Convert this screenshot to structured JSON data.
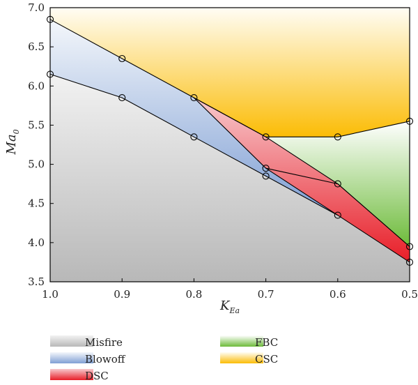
{
  "chart_data": {
    "type": "area",
    "title": "",
    "xlabel": {
      "main": "K",
      "sub": "Ea"
    },
    "ylabel": {
      "main": "Ma",
      "sub": "0"
    },
    "xlim": [
      1.0,
      0.5
    ],
    "ylim": [
      3.5,
      7.0
    ],
    "x_reversed": true,
    "x_ticks": [
      "1.0",
      "0.9",
      "0.8",
      "0.7",
      "0.6",
      "0.5"
    ],
    "x_tick_values": [
      1.0,
      0.9,
      0.8,
      0.7,
      0.6,
      0.5
    ],
    "y_ticks": [
      "3.5",
      "4.0",
      "4.5",
      "5.0",
      "5.5",
      "6.0",
      "6.5",
      "7.0"
    ],
    "y_tick_values": [
      3.5,
      4.0,
      4.5,
      5.0,
      5.5,
      6.0,
      6.5,
      7.0
    ],
    "grid": false,
    "legend_position": "bottom",
    "lines": [
      {
        "points": [
          [
            1.0,
            6.15
          ],
          [
            0.9,
            5.85
          ],
          [
            0.8,
            5.35
          ],
          [
            0.7,
            4.85
          ],
          [
            0.6,
            4.35
          ],
          [
            0.5,
            3.75
          ]
        ]
      },
      {
        "points": [
          [
            1.0,
            6.85
          ],
          [
            0.9,
            6.35
          ],
          [
            0.8,
            5.85
          ],
          [
            0.7,
            4.95
          ],
          [
            0.6,
            4.75
          ],
          [
            0.5,
            3.95
          ]
        ]
      },
      {
        "points": [
          [
            0.8,
            5.85
          ],
          [
            0.7,
            5.35
          ],
          [
            0.6,
            5.35
          ],
          [
            0.5,
            5.55
          ]
        ]
      },
      {
        "points": [
          [
            0.8,
            5.85
          ],
          [
            0.7,
            5.35
          ],
          [
            0.6,
            4.75
          ],
          [
            0.5,
            3.95
          ]
        ]
      },
      {
        "points": [
          [
            0.7,
            4.95
          ],
          [
            0.6,
            4.35
          ]
        ]
      }
    ],
    "markers": [
      [
        1.0,
        6.85
      ],
      [
        1.0,
        6.15
      ],
      [
        0.9,
        6.35
      ],
      [
        0.9,
        5.85
      ],
      [
        0.8,
        5.85
      ],
      [
        0.8,
        5.35
      ],
      [
        0.7,
        5.35
      ],
      [
        0.7,
        4.95
      ],
      [
        0.7,
        4.85
      ],
      [
        0.6,
        5.35
      ],
      [
        0.6,
        4.75
      ],
      [
        0.6,
        4.35
      ],
      [
        0.5,
        5.55
      ],
      [
        0.5,
        3.95
      ],
      [
        0.5,
        3.75
      ]
    ],
    "regions": [
      {
        "name": "Misfire",
        "color_top": "#f2f2f2",
        "color_bottom": "#b8b8b8",
        "polygon": [
          [
            1.0,
            3.5
          ],
          [
            1.0,
            6.15
          ],
          [
            0.9,
            5.85
          ],
          [
            0.8,
            5.35
          ],
          [
            0.7,
            4.85
          ],
          [
            0.6,
            4.35
          ],
          [
            0.5,
            3.75
          ],
          [
            0.5,
            3.5
          ]
        ]
      },
      {
        "name": "Blowoff",
        "color_top": "#f4f7fb",
        "color_bottom": "#7f9fd4",
        "polygon": [
          [
            1.0,
            6.15
          ],
          [
            1.0,
            6.85
          ],
          [
            0.9,
            6.35
          ],
          [
            0.8,
            5.85
          ],
          [
            0.7,
            4.95
          ],
          [
            0.6,
            4.35
          ],
          [
            0.7,
            4.85
          ],
          [
            0.8,
            5.35
          ],
          [
            0.9,
            5.85
          ]
        ]
      },
      {
        "name": "DSC",
        "color_top": "#f7c9cd",
        "color_bottom": "#e81e28",
        "polygon": [
          [
            0.8,
            5.85
          ],
          [
            0.7,
            5.35
          ],
          [
            0.6,
            4.75
          ],
          [
            0.5,
            3.95
          ],
          [
            0.5,
            3.75
          ],
          [
            0.6,
            4.35
          ],
          [
            0.7,
            4.95
          ]
        ]
      },
      {
        "name": "FBC",
        "color_top": "#ffffff",
        "color_bottom": "#6dbb3a",
        "polygon": [
          [
            0.7,
            5.35
          ],
          [
            0.6,
            5.35
          ],
          [
            0.5,
            5.55
          ],
          [
            0.5,
            3.95
          ],
          [
            0.6,
            4.75
          ]
        ]
      },
      {
        "name": "CSC",
        "color_top": "#fffdf5",
        "color_bottom": "#fbbc05",
        "polygon": [
          [
            1.0,
            6.85
          ],
          [
            1.0,
            7.0
          ],
          [
            0.5,
            7.0
          ],
          [
            0.5,
            5.55
          ],
          [
            0.6,
            5.35
          ],
          [
            0.7,
            5.35
          ],
          [
            0.8,
            5.85
          ],
          [
            0.9,
            6.35
          ]
        ]
      }
    ],
    "legend": [
      {
        "label": "Misfire",
        "color_top": "#f2f2f2",
        "color_bottom": "#b8b8b8"
      },
      {
        "label": "Blowoff",
        "color_top": "#f4f7fb",
        "color_bottom": "#7f9fd4"
      },
      {
        "label": "DSC",
        "color_top": "#f7c9cd",
        "color_bottom": "#e81e28"
      },
      {
        "label": "FBC",
        "color_top": "#ffffff",
        "color_bottom": "#6dbb3a"
      },
      {
        "label": "CSC",
        "color_top": "#fffdf5",
        "color_bottom": "#fbbc05"
      }
    ]
  }
}
